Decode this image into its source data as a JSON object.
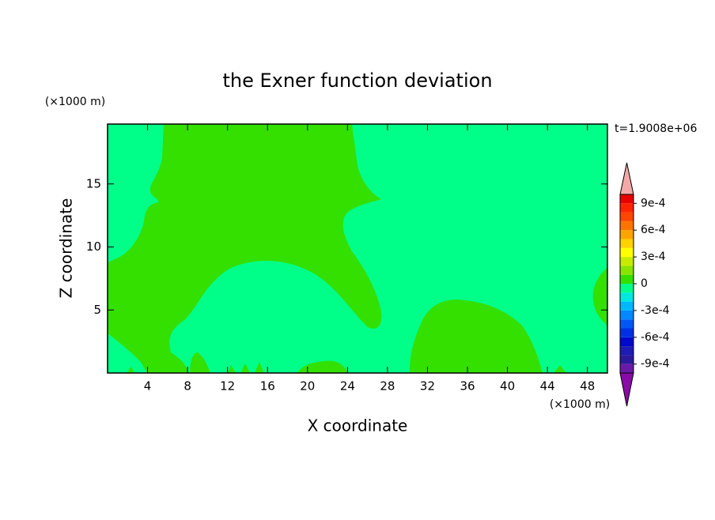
{
  "chart_data": {
    "type": "contour",
    "title": "the Exner function deviation",
    "x_label": "X coordinate",
    "y_label": "Z coordinate",
    "x_unit": "(×1000 m)",
    "y_unit": "(×1000 m)",
    "time_label": "t=1.9008e+06",
    "xlim": [
      0,
      50
    ],
    "ylim": [
      0,
      19.75
    ],
    "xticks": [
      4,
      8,
      12,
      16,
      20,
      24,
      28,
      32,
      36,
      40,
      44,
      48
    ],
    "yticks": [
      5,
      10,
      15
    ],
    "colorbar": {
      "clim": [
        -0.001,
        0.001
      ],
      "ticks": [
        {
          "value": -0.0009,
          "label": "-9e-4"
        },
        {
          "value": -0.0006,
          "label": "-6e-4"
        },
        {
          "value": -0.0003,
          "label": "-3e-4"
        },
        0,
        {
          "value": 0.0003,
          "label": "3e-4"
        },
        {
          "value": 0.0006,
          "label": "6e-4"
        },
        {
          "value": 0.0009,
          "label": "9e-4"
        }
      ],
      "colors": [
        "#6a1aa8",
        "#2c1a9c",
        "#1c1cb4",
        "#0008cc",
        "#0030e4",
        "#0058f4",
        "#0088ff",
        "#00b8ff",
        "#00e8e0",
        "#00ff88",
        "#33e000",
        "#88e400",
        "#c8ec00",
        "#ffff00",
        "#ffd200",
        "#ffa400",
        "#ff7400",
        "#ff4600",
        "#ff2400",
        "#e80000"
      ],
      "over_color": "#f4a8a8",
      "under_color": "#8a0aa8"
    }
  }
}
